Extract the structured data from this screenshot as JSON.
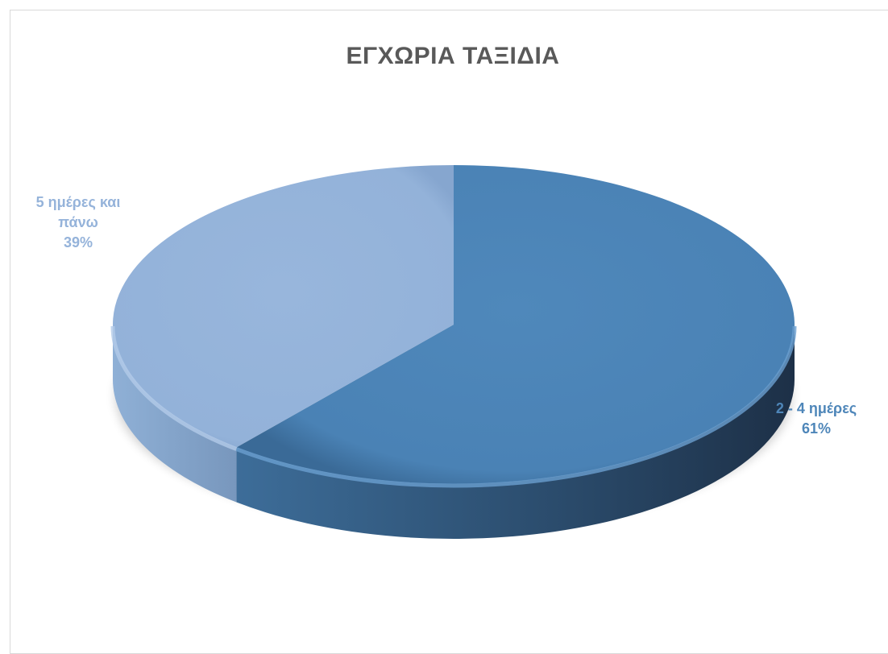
{
  "chart_data": {
    "type": "pie",
    "title": "ΕΓΧΩΡΙΑ ΤΑΞΙΔΙΑ",
    "slices": [
      {
        "name": "2 - 4 ημέρες",
        "percent_label": "61%",
        "value": 61,
        "color": "#4e86b9"
      },
      {
        "name": "5 ημέρες και πάνω",
        "name_lines": [
          "5 ημέρες και",
          "πάνω"
        ],
        "percent_label": "39%",
        "value": 39,
        "color": "#95b3da"
      }
    ],
    "style": "3d",
    "legend": "none",
    "label_colors": {
      "2 - 4 ημέρες": "#4e86b9",
      "5 ημέρες και πάνω": "#95b3da"
    }
  }
}
